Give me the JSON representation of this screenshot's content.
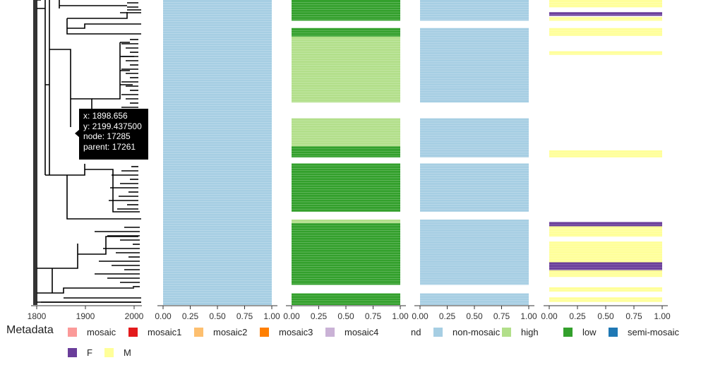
{
  "chart_data": {
    "type": "tree-heatmap",
    "tree": {
      "x_ticks": [
        "1800",
        "1900",
        "2000"
      ],
      "xlim": [
        1780,
        2020
      ],
      "tooltip": {
        "lines": [
          "x: 1898.656",
          "y: 2199.437500",
          "node: 17285",
          "parent: 17261"
        ]
      }
    },
    "panels": [
      {
        "x_ticks": [
          "0.00",
          "0.25",
          "0.50",
          "0.75",
          "1.00"
        ],
        "segments": [
          {
            "from": 0,
            "to": 1,
            "category": "non-mosaic"
          }
        ]
      },
      {
        "x_ticks": [
          "0.00",
          "0.25",
          "0.50",
          "0.75",
          "1.00"
        ],
        "segments": [
          {
            "from": 0.0,
            "to": 0.068,
            "category": "low"
          },
          {
            "from": 0.092,
            "to": 0.12,
            "category": "low"
          },
          {
            "from": 0.12,
            "to": 0.336,
            "category": "high"
          },
          {
            "from": 0.388,
            "to": 0.48,
            "category": "high"
          },
          {
            "from": 0.48,
            "to": 0.516,
            "category": "low"
          },
          {
            "from": 0.536,
            "to": 0.694,
            "category": "low"
          },
          {
            "from": 0.72,
            "to": 0.732,
            "category": "high"
          },
          {
            "from": 0.732,
            "to": 0.934,
            "category": "low"
          },
          {
            "from": 0.962,
            "to": 1.0,
            "category": "low"
          }
        ]
      },
      {
        "x_ticks": [
          "0.00",
          "0.25",
          "0.50",
          "0.75",
          "1.00"
        ],
        "segments": [
          {
            "from": 0.0,
            "to": 0.068,
            "category": "non-mosaic"
          },
          {
            "from": 0.092,
            "to": 0.336,
            "category": "non-mosaic"
          },
          {
            "from": 0.388,
            "to": 0.516,
            "category": "non-mosaic"
          },
          {
            "from": 0.536,
            "to": 0.694,
            "category": "non-mosaic"
          },
          {
            "from": 0.72,
            "to": 0.934,
            "category": "non-mosaic"
          },
          {
            "from": 0.962,
            "to": 1.0,
            "category": "non-mosaic"
          }
        ]
      },
      {
        "x_ticks": [
          "0.00",
          "0.25",
          "0.50",
          "0.75",
          "1.00"
        ],
        "segments": [
          {
            "from": 0.0,
            "to": 0.024,
            "category": "M"
          },
          {
            "from": 0.04,
            "to": 0.052,
            "category": "F"
          },
          {
            "from": 0.056,
            "to": 0.068,
            "category": "M"
          },
          {
            "from": 0.092,
            "to": 0.118,
            "category": "M"
          },
          {
            "from": 0.168,
            "to": 0.18,
            "category": "M"
          },
          {
            "from": 0.493,
            "to": 0.516,
            "category": "M"
          },
          {
            "from": 0.728,
            "to": 0.742,
            "category": "F"
          },
          {
            "from": 0.742,
            "to": 0.776,
            "category": "M"
          },
          {
            "from": 0.792,
            "to": 0.86,
            "category": "M"
          },
          {
            "from": 0.86,
            "to": 0.886,
            "category": "F"
          },
          {
            "from": 0.886,
            "to": 0.908,
            "category": "M"
          },
          {
            "from": 0.942,
            "to": 0.956,
            "category": "M"
          },
          {
            "from": 0.975,
            "to": 0.99,
            "category": "M"
          }
        ]
      }
    ],
    "legend": {
      "title": "Metadata",
      "items": [
        {
          "label": "mosaic",
          "color": "#fb9a99"
        },
        {
          "label": "mosaic1",
          "color": "#e31a1c"
        },
        {
          "label": "mosaic2",
          "color": "#fdbf6f"
        },
        {
          "label": "mosaic3",
          "color": "#ff7f00"
        },
        {
          "label": "mosaic4",
          "color": "#cab2d6"
        },
        {
          "label": "nd",
          "color": ""
        },
        {
          "label": "non-mosaic",
          "color": "#a6cee3"
        },
        {
          "label": "high",
          "color": "#b2df8a"
        },
        {
          "label": "low",
          "color": "#33a02c"
        },
        {
          "label": "semi-mosaic",
          "color": "#1f78b4"
        },
        {
          "label": "F",
          "color": "#6a3d9a"
        },
        {
          "label": "M",
          "color": "#ffff99"
        }
      ]
    },
    "colors": {
      "non-mosaic": "#a6cee3",
      "high": "#b2df8a",
      "low": "#33a02c",
      "F": "#6a3d9a",
      "M": "#ffff99"
    }
  }
}
